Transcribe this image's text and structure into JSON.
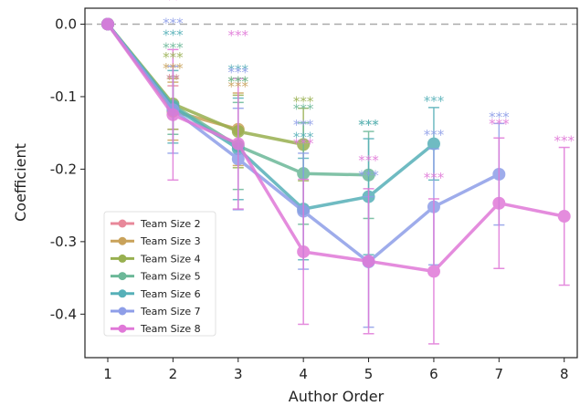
{
  "chart_data": {
    "type": "line",
    "xlabel": "Author Order",
    "ylabel": "Coefficient",
    "x_ticks": [
      "1",
      "2",
      "3",
      "4",
      "5",
      "6",
      "7",
      "8"
    ],
    "y_ticks": [
      "0.0",
      "-0.1",
      "-0.2",
      "-0.3",
      "-0.4"
    ],
    "xlim": [
      0.65,
      8.2
    ],
    "ylim": [
      -0.46,
      0.022
    ],
    "reference_line": 0.0,
    "legend_position": "lower-left",
    "series": [
      {
        "name": "Team Size 2",
        "color": "#e8889a",
        "x": [
          1,
          2
        ],
        "y": [
          0.0,
          -0.115
        ],
        "err": [
          0.0,
          0.03
        ],
        "stars": [
          null,
          "**"
        ]
      },
      {
        "name": "Team Size 3",
        "color": "#c9a25a",
        "x": [
          1,
          2,
          3
        ],
        "y": [
          0.0,
          -0.12,
          -0.145
        ],
        "err": [
          0.0,
          0.04,
          0.05
        ],
        "stars": [
          null,
          "***",
          "***"
        ]
      },
      {
        "name": "Team Size 4",
        "color": "#98b050",
        "x": [
          1,
          2,
          3,
          4
        ],
        "y": [
          0.0,
          -0.11,
          -0.148,
          -0.166
        ],
        "err": [
          0.0,
          0.035,
          0.05,
          0.05
        ],
        "stars": [
          null,
          "***",
          "***",
          "***"
        ]
      },
      {
        "name": "Team Size 5",
        "color": "#6cb898",
        "x": [
          1,
          2,
          3,
          4,
          5
        ],
        "y": [
          0.0,
          -0.112,
          -0.168,
          -0.206,
          -0.208
        ],
        "err": [
          0.0,
          0.04,
          0.06,
          0.07,
          0.06
        ],
        "stars": [
          null,
          "***",
          "***",
          "***",
          "***"
        ]
      },
      {
        "name": "Team Size 6",
        "color": "#56b0b8",
        "x": [
          1,
          2,
          3,
          4,
          5,
          6
        ],
        "y": [
          0.0,
          -0.114,
          -0.172,
          -0.255,
          -0.238,
          -0.165
        ],
        "err": [
          0.0,
          0.05,
          0.07,
          0.07,
          0.08,
          0.05
        ],
        "stars": [
          null,
          "***",
          "***",
          "***",
          "***",
          "***"
        ]
      },
      {
        "name": "Team Size 7",
        "color": "#8e9ee8",
        "x": [
          1,
          2,
          3,
          4,
          5,
          6,
          7
        ],
        "y": [
          0.0,
          -0.118,
          -0.186,
          -0.258,
          -0.328,
          -0.252,
          -0.207
        ],
        "err": [
          0.0,
          0.06,
          0.07,
          0.08,
          0.09,
          0.08,
          0.07
        ],
        "stars": [
          null,
          "***",
          "***",
          "***",
          "***",
          "***",
          "***"
        ]
      },
      {
        "name": "Team Size 8",
        "color": "#e078d8",
        "x": [
          1,
          2,
          3,
          4,
          5,
          6,
          7,
          8
        ],
        "y": [
          0.0,
          -0.125,
          -0.165,
          -0.314,
          -0.327,
          -0.341,
          -0.247,
          -0.265
        ],
        "err": [
          0.0,
          0.09,
          0.09,
          0.1,
          0.1,
          0.1,
          0.09,
          0.095
        ],
        "stars": [
          null,
          "**",
          "***",
          "***",
          "***",
          "***",
          "***",
          "***"
        ]
      }
    ]
  }
}
